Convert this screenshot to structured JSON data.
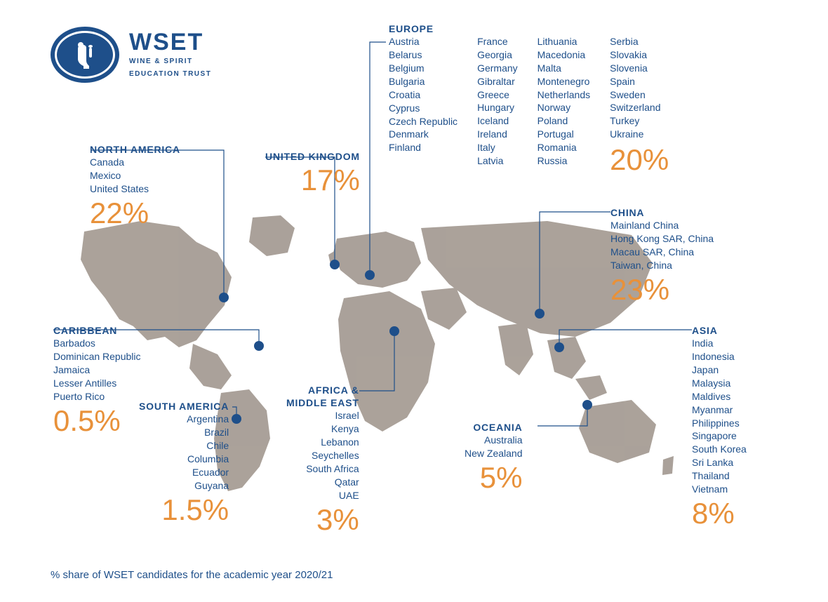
{
  "brand": {
    "title": "WSET",
    "subline1": "WINE & SPIRIT",
    "subline2": "EDUCATION TRUST"
  },
  "map": {
    "land_color": "#a69d95",
    "pin_color": "#1e4f8a"
  },
  "regions": {
    "north_america": {
      "title": "NORTH AMERICA",
      "countries": [
        "Canada",
        "Mexico",
        "United States"
      ],
      "pct": "22%"
    },
    "uk": {
      "title": "UNITED KINGDOM",
      "pct": "17%"
    },
    "europe": {
      "title": "EUROPE",
      "col1": [
        "Austria",
        "Belarus",
        "Belgium",
        "Bulgaria",
        "Croatia",
        "Cyprus",
        "Czech Republic",
        "Denmark",
        "Finland"
      ],
      "col2": [
        "France",
        "Georgia",
        "Germany",
        "Gibraltar",
        "Greece",
        "Hungary",
        "Iceland",
        "Ireland",
        "Italy",
        "Latvia"
      ],
      "col3": [
        "Lithuania",
        "Macedonia",
        "Malta",
        "Montenegro",
        "Netherlands",
        "Norway",
        "Poland",
        "Portugal",
        "Romania",
        "Russia"
      ],
      "col4": [
        "Serbia",
        "Slovakia",
        "Slovenia",
        "Spain",
        "Sweden",
        "Switzerland",
        "Turkey",
        "Ukraine"
      ],
      "pct": "20%"
    },
    "caribbean": {
      "title": "CARIBBEAN",
      "countries": [
        "Barbados",
        "Dominican Republic",
        "Jamaica",
        "Lesser Antilles",
        "Puerto Rico"
      ],
      "pct": "0.5%"
    },
    "south_america": {
      "title": "SOUTH AMERICA",
      "countries": [
        "Argentina",
        "Brazil",
        "Chile",
        "Columbia",
        "Ecuador",
        "Guyana"
      ],
      "pct": "1.5%"
    },
    "africa_me": {
      "title1": "AFRICA &",
      "title2": "MIDDLE EAST",
      "countries": [
        "Israel",
        "Kenya",
        "Lebanon",
        "Seychelles",
        "South Africa",
        "Qatar",
        "UAE"
      ],
      "pct": "3%"
    },
    "oceania": {
      "title": "OCEANIA",
      "countries": [
        "Australia",
        "New Zealand"
      ],
      "pct": "5%"
    },
    "china": {
      "title": "CHINA",
      "countries": [
        "Mainland China",
        "Hong Kong SAR, China",
        "Macau SAR, China",
        "Taiwan, China"
      ],
      "pct": "23%"
    },
    "asia": {
      "title": "ASIA",
      "countries": [
        "India",
        "Indonesia",
        "Japan",
        "Malaysia",
        "Maldives",
        "Myanmar",
        "Philippines",
        "Singapore",
        "South Korea",
        "Sri Lanka",
        "Thailand",
        "Vietnam"
      ],
      "pct": "8%"
    }
  },
  "footer": "% share of WSET candidates for the academic year 2020/21",
  "style": {
    "title_color": "#1e4f8a",
    "country_color": "#1e4f8a",
    "pct_color": "#e8913a",
    "title_fontsize": 14,
    "country_fontsize": 14,
    "pct_fontsize": 42
  }
}
